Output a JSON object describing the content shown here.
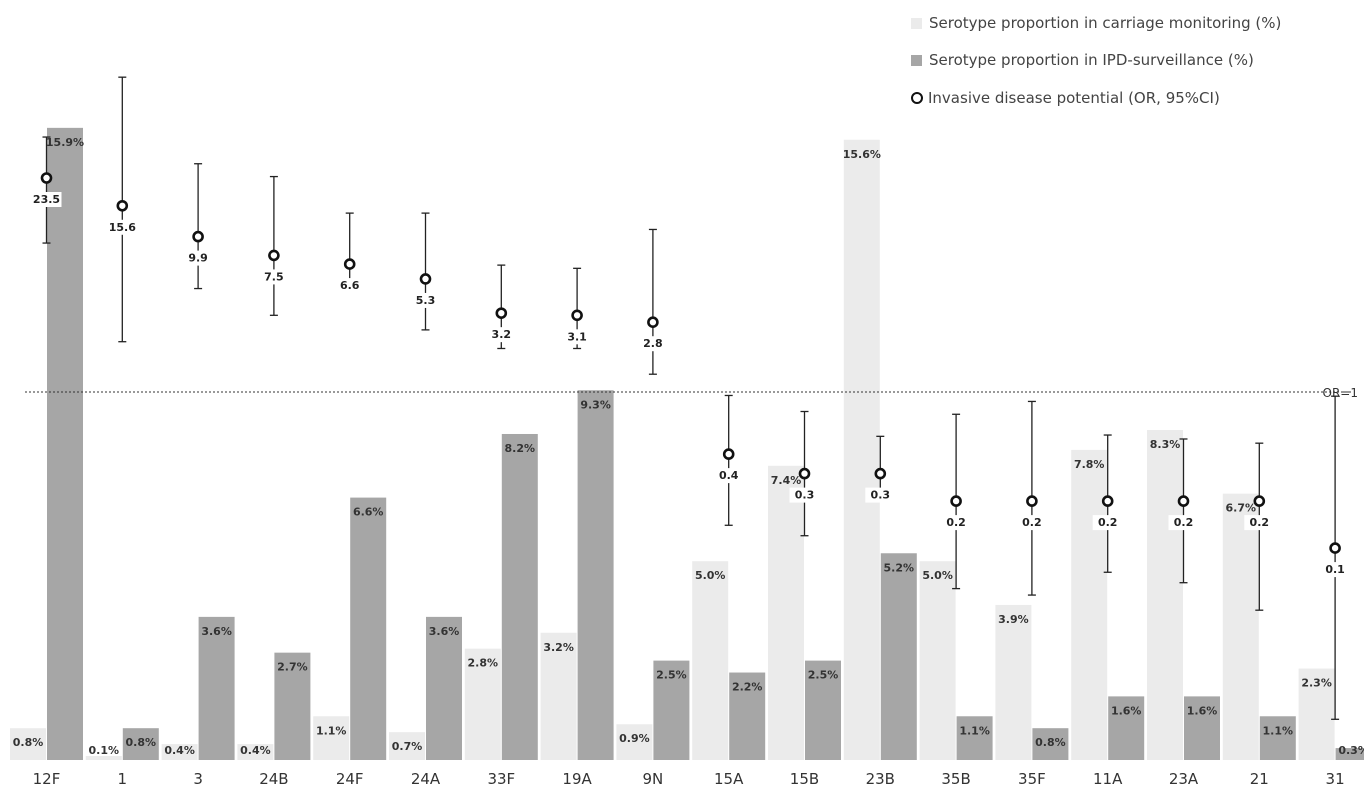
{
  "chart_data": {
    "type": "bar",
    "categories": [
      "12F",
      "1",
      "3",
      "24B",
      "24F",
      "24A",
      "33F",
      "19A",
      "9N",
      "15A",
      "15B",
      "23B",
      "35B",
      "35F",
      "11A",
      "23A",
      "21",
      "31"
    ],
    "series": [
      {
        "name": "Serotype proportion in carriage monitoring (%)",
        "color": "#ebebeb",
        "values": [
          0.8,
          0.1,
          0.4,
          0.4,
          1.1,
          0.7,
          2.8,
          3.2,
          0.9,
          5.0,
          7.4,
          15.6,
          5.0,
          3.9,
          7.8,
          8.3,
          6.7,
          2.3
        ],
        "labels": [
          "0.8%",
          "0.1%",
          "0.4%",
          "0.4%",
          "1.1%",
          "0.7%",
          "2.8%",
          "3.2%",
          "0.9%",
          "5.0%",
          "7.4%",
          "15.6%",
          "5.0%",
          "3.9%",
          "7.8%",
          "8.3%",
          "6.7%",
          "2.3%"
        ]
      },
      {
        "name": "Serotype proportion in IPD-surveillance (%)",
        "color": "#a6a6a6",
        "values": [
          15.9,
          0.8,
          3.6,
          2.7,
          6.6,
          3.6,
          8.2,
          9.3,
          2.5,
          2.2,
          2.5,
          5.2,
          1.1,
          0.8,
          1.6,
          1.6,
          1.1,
          0.3
        ],
        "labels": [
          "15.9%",
          "0.8%",
          "3.6%",
          "2.7%",
          "6.6%",
          "3.6%",
          "8.2%",
          "9.3%",
          "2.5%",
          "2.2%",
          "2.5%",
          "5.2%",
          "1.1%",
          "0.8%",
          "1.6%",
          "1.6%",
          "1.1%",
          "0.3%"
        ]
      }
    ],
    "or_series": {
      "name": "Invasive disease potential (OR, 95%CI)",
      "values": [
        23.5,
        15.6,
        9.9,
        7.5,
        6.6,
        5.3,
        3.2,
        3.1,
        2.8,
        0.4,
        0.3,
        0.3,
        0.2,
        0.2,
        0.2,
        0.2,
        0.2,
        0.1
      ],
      "labels": [
        "23.5",
        "15.6",
        "9.9",
        "7.5",
        "6.6",
        "5.3",
        "3.2",
        "3.1",
        "2.8",
        "0.4",
        "0.3",
        "0.3",
        "0.2",
        "0.2",
        "0.2",
        "0.2",
        "0.2",
        "0.1"
      ],
      "ci_low": [
        9.0,
        2.1,
        4.6,
        3.1,
        4.4,
        2.5,
        1.9,
        1.9,
        1.3,
        0.14,
        0.12,
        0.2,
        0.055,
        0.05,
        0.07,
        0.06,
        0.04,
        0.008
      ],
      "ci_high": [
        43,
        104,
        29,
        24,
        14,
        14,
        6.5,
        6.2,
        11,
        0.95,
        0.75,
        0.52,
        0.72,
        0.87,
        0.53,
        0.5,
        0.47,
        0.94
      ]
    },
    "reference_line": {
      "label": "OR=1",
      "value": 1
    },
    "bar_ylim": [
      0,
      16.5
    ],
    "or_scale": "log",
    "grid": false,
    "legend": "top-right"
  }
}
